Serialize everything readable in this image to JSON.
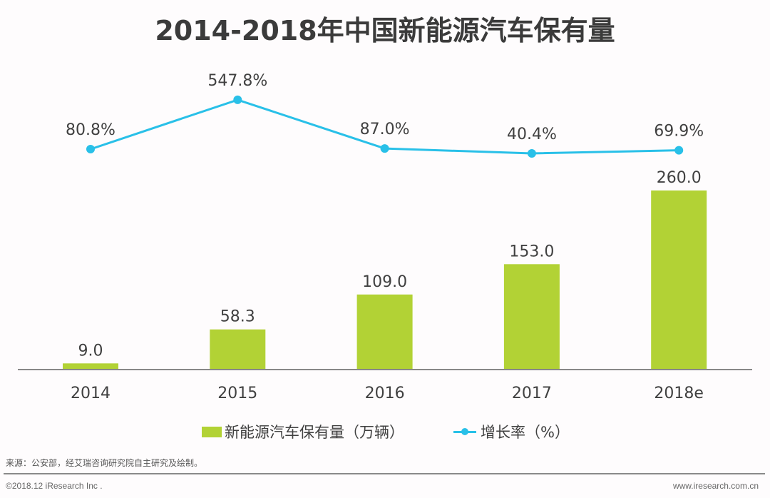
{
  "chart_data": {
    "type": "bar",
    "title": "2014-2018年中国新能源汽车保有量",
    "categories": [
      "2014",
      "2015",
      "2016",
      "2017",
      "2018e"
    ],
    "series": [
      {
        "name": "新能源汽车保有量（万辆）",
        "type": "bar",
        "color": "#b2d235",
        "values": [
          9.0,
          58.3,
          109.0,
          153.0,
          260.0
        ],
        "labels": [
          "9.0",
          "58.3",
          "109.0",
          "153.0",
          "260.0"
        ]
      },
      {
        "name": "增长率（%）",
        "type": "line",
        "color": "#29c0e8",
        "values": [
          80.8,
          547.8,
          87.0,
          40.4,
          69.9
        ],
        "labels": [
          "80.8%",
          "547.8%",
          "87.0%",
          "40.4%",
          "69.9%"
        ]
      }
    ],
    "xlabel": "",
    "ylabel": "",
    "grid": false,
    "legend_position": "bottom"
  },
  "footer": {
    "source": "来源：公安部，经艾瑞咨询研究院自主研究及绘制。",
    "copyright": "©2018.12 iResearch Inc .",
    "website": "www.iresearch.com.cn"
  }
}
